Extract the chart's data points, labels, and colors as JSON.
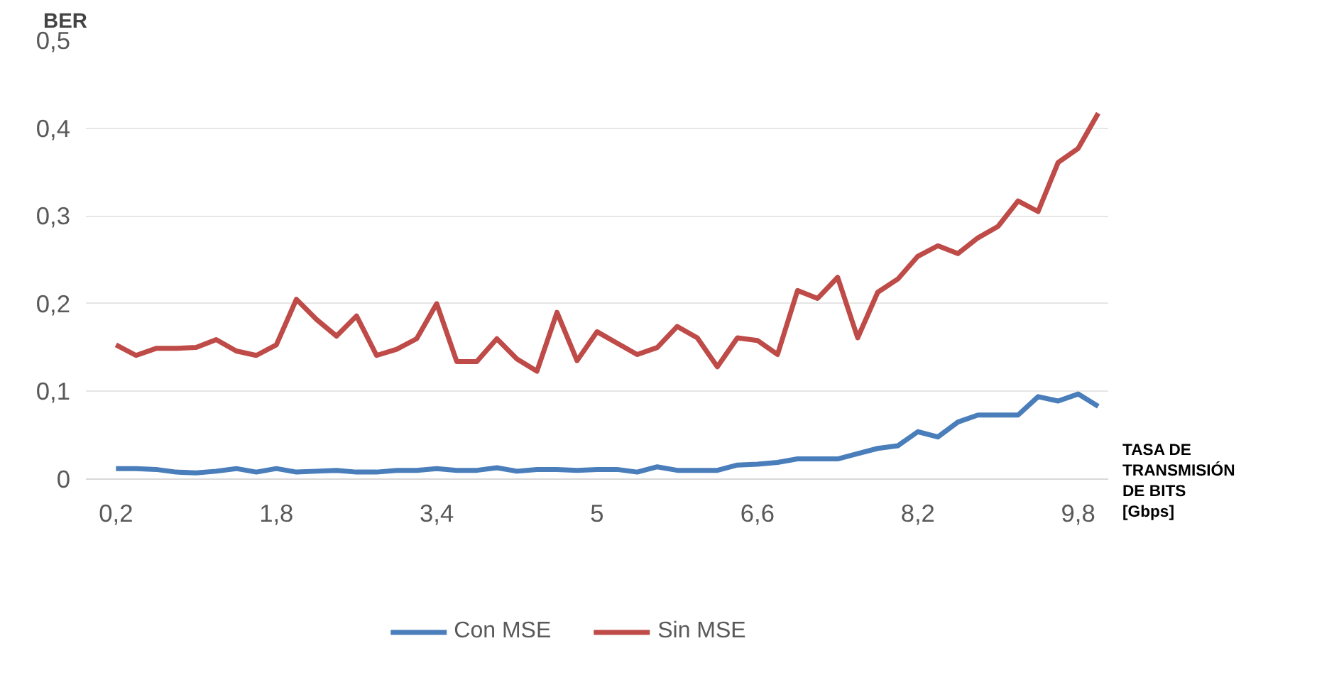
{
  "chart_data": {
    "type": "line",
    "ylabel": "BER",
    "xlabel": "TASA DE TRANSMISIÓN DE BITS [Gbps]",
    "x": [
      0.2,
      0.4,
      0.6,
      0.8,
      1.0,
      1.2,
      1.4,
      1.6,
      1.8,
      2.0,
      2.2,
      2.4,
      2.6,
      2.8,
      3.0,
      3.2,
      3.4,
      3.6,
      3.8,
      4.0,
      4.2,
      4.4,
      4.6,
      4.8,
      5.0,
      5.2,
      5.4,
      5.6,
      5.8,
      6.0,
      6.2,
      6.4,
      6.6,
      6.8,
      7.0,
      7.2,
      7.4,
      7.6,
      7.8,
      8.0,
      8.2,
      8.4,
      8.6,
      8.8,
      9.0,
      9.2,
      9.4,
      9.6,
      9.8,
      10.0
    ],
    "series": [
      {
        "name": "Con MSE",
        "color": "#4a7ebb",
        "values": [
          0.012,
          0.012,
          0.011,
          0.008,
          0.007,
          0.009,
          0.012,
          0.008,
          0.012,
          0.008,
          0.009,
          0.01,
          0.008,
          0.008,
          0.01,
          0.01,
          0.012,
          0.01,
          0.01,
          0.013,
          0.009,
          0.011,
          0.011,
          0.01,
          0.011,
          0.011,
          0.008,
          0.014,
          0.01,
          0.01,
          0.01,
          0.016,
          0.017,
          0.019,
          0.023,
          0.023,
          0.023,
          0.029,
          0.035,
          0.038,
          0.054,
          0.048,
          0.065,
          0.073,
          0.073,
          0.073,
          0.094,
          0.089,
          0.097,
          0.083
        ]
      },
      {
        "name": "Sin MSE",
        "color": "#be4b48",
        "values": [
          0.153,
          0.141,
          0.149,
          0.149,
          0.15,
          0.159,
          0.146,
          0.141,
          0.153,
          0.205,
          0.182,
          0.163,
          0.186,
          0.141,
          0.148,
          0.16,
          0.2,
          0.134,
          0.134,
          0.16,
          0.137,
          0.123,
          0.19,
          0.135,
          0.168,
          0.155,
          0.142,
          0.15,
          0.174,
          0.161,
          0.128,
          0.161,
          0.158,
          0.142,
          0.215,
          0.206,
          0.23,
          0.161,
          0.213,
          0.228,
          0.254,
          0.266,
          0.257,
          0.275,
          0.288,
          0.317,
          0.305,
          0.361,
          0.377,
          0.417
        ]
      }
    ],
    "xlim": [
      -0.1,
      10.1
    ],
    "xticks": [
      {
        "value": 0.2,
        "label": "0,2"
      },
      {
        "value": 1.8,
        "label": "1,8"
      },
      {
        "value": 3.4,
        "label": "3,4"
      },
      {
        "value": 5,
        "label": "5"
      },
      {
        "value": 6.6,
        "label": "6,6"
      },
      {
        "value": 8.2,
        "label": "8,2"
      },
      {
        "value": 9.8,
        "label": "9,8"
      }
    ],
    "ylim": [
      0,
      0.5
    ],
    "yticks": [
      {
        "value": 0,
        "label": "0"
      },
      {
        "value": 0.1,
        "label": "0,1"
      },
      {
        "value": 0.2,
        "label": "0,2"
      },
      {
        "value": 0.3,
        "label": "0,3"
      },
      {
        "value": 0.4,
        "label": "0,4"
      },
      {
        "value": 0.5,
        "label": "0,5"
      }
    ],
    "grid": "y",
    "legend": "bottom",
    "marker": "none",
    "line_style": "solid"
  }
}
